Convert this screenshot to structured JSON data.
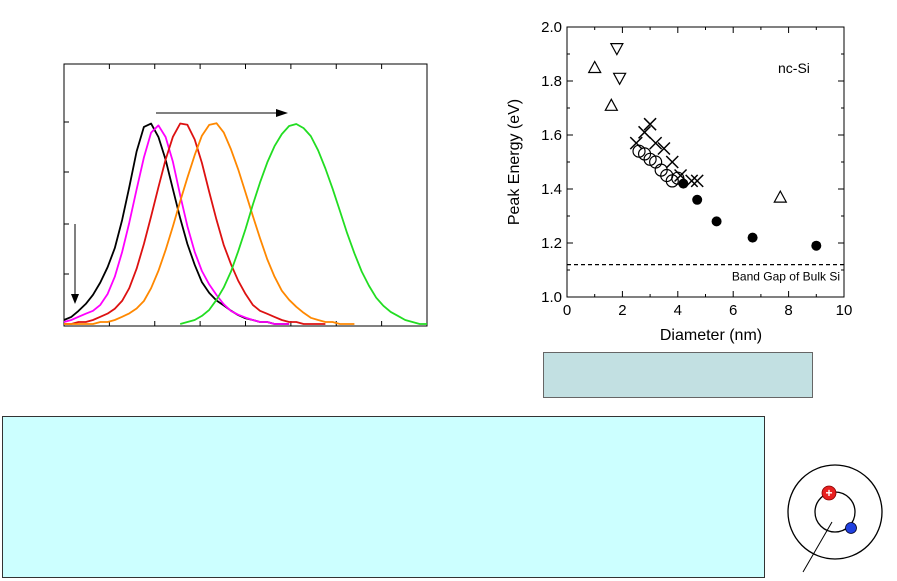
{
  "pl_chart": {
    "type": "line",
    "title": "",
    "xlabel": "",
    "ylabel": "",
    "xlim": [
      0,
      100
    ],
    "ylim": [
      0,
      1
    ],
    "x": [
      0,
      2,
      4,
      6,
      8,
      10,
      12,
      14,
      16,
      18,
      20,
      22,
      24,
      26,
      28,
      30,
      32,
      34,
      36,
      38,
      40,
      42,
      44,
      46,
      48,
      50,
      52,
      54,
      56,
      58,
      60,
      62,
      64,
      66,
      68,
      70,
      72,
      74,
      76,
      78,
      80,
      82,
      84,
      86,
      88,
      90,
      92,
      94,
      96,
      98,
      100
    ],
    "series": [
      {
        "color": "#000000",
        "values": [
          0.02,
          0.04,
          0.07,
          0.1,
          0.14,
          0.2,
          0.28,
          0.38,
          0.52,
          0.68,
          0.85,
          0.97,
          0.99,
          0.93,
          0.82,
          0.67,
          0.52,
          0.39,
          0.29,
          0.21,
          0.16,
          0.12,
          0.09,
          0.06,
          0.04,
          0.03,
          0.02,
          0.01,
          0.01,
          0.0,
          0.0,
          0.0,
          null,
          null,
          null,
          null,
          null,
          null,
          null,
          null,
          null,
          null,
          null,
          null,
          null,
          null,
          null,
          null,
          null,
          null,
          null
        ]
      },
      {
        "color": "#ff00ff",
        "values": [
          0.01,
          0.02,
          0.03,
          0.05,
          0.07,
          0.1,
          0.15,
          0.23,
          0.35,
          0.5,
          0.67,
          0.83,
          0.95,
          0.98,
          0.92,
          0.8,
          0.64,
          0.49,
          0.36,
          0.26,
          0.19,
          0.14,
          0.1,
          0.07,
          0.05,
          0.03,
          0.02,
          0.01,
          0.01,
          0.0,
          0.0,
          0.0,
          null,
          null,
          null,
          null,
          null,
          null,
          null,
          null,
          null,
          null,
          null,
          null,
          null,
          null,
          null,
          null,
          null,
          null,
          null
        ]
      },
      {
        "color": "#dd1111",
        "values": [
          0.0,
          0.0,
          0.01,
          0.01,
          0.02,
          0.03,
          0.05,
          0.08,
          0.12,
          0.18,
          0.27,
          0.39,
          0.53,
          0.68,
          0.82,
          0.93,
          0.99,
          0.98,
          0.91,
          0.8,
          0.66,
          0.52,
          0.39,
          0.29,
          0.21,
          0.15,
          0.1,
          0.07,
          0.05,
          0.03,
          0.02,
          0.01,
          0.01,
          0.0,
          0.0,
          0.0,
          0.0,
          null,
          null,
          null,
          null,
          null,
          null,
          null,
          null,
          null,
          null,
          null,
          null,
          null,
          null
        ]
      },
      {
        "color": "#ff8800",
        "values": [
          0.0,
          0.0,
          0.0,
          0.0,
          0.0,
          0.01,
          0.01,
          0.02,
          0.03,
          0.05,
          0.08,
          0.12,
          0.18,
          0.26,
          0.36,
          0.48,
          0.61,
          0.73,
          0.84,
          0.93,
          0.98,
          0.99,
          0.95,
          0.87,
          0.77,
          0.65,
          0.53,
          0.42,
          0.32,
          0.24,
          0.17,
          0.12,
          0.08,
          0.05,
          0.03,
          0.02,
          0.01,
          0.01,
          0.0,
          0.0,
          0.0,
          null,
          null,
          null,
          null,
          null,
          null,
          null,
          null,
          null,
          null
        ]
      },
      {
        "color": "#22dd22",
        "values": [
          null,
          null,
          null,
          null,
          null,
          null,
          null,
          null,
          null,
          null,
          null,
          null,
          null,
          null,
          null,
          null,
          0.0,
          0.01,
          0.02,
          0.04,
          0.07,
          0.12,
          0.18,
          0.26,
          0.36,
          0.47,
          0.59,
          0.7,
          0.8,
          0.88,
          0.94,
          0.98,
          0.99,
          0.97,
          0.93,
          0.86,
          0.77,
          0.67,
          0.56,
          0.45,
          0.35,
          0.26,
          0.19,
          0.13,
          0.09,
          0.06,
          0.04,
          0.02,
          0.01,
          0.0,
          0.0
        ]
      }
    ]
  },
  "pe_chart": {
    "type": "scatter",
    "xlabel": "Diameter (nm)",
    "ylabel": "Peak Energy (eV)",
    "xlim": [
      0,
      10
    ],
    "ylim": [
      1.0,
      2.0
    ],
    "xticks": [
      "0",
      "2",
      "4",
      "6",
      "8",
      "10"
    ],
    "yticks": [
      "1.0",
      "1.2",
      "1.4",
      "1.6",
      "1.8",
      "2.0"
    ],
    "legend_text": "nc-Si",
    "reference_line": {
      "y": 1.12,
      "label": "Band Gap of Bulk Si"
    },
    "series": [
      {
        "marker": "triangle-up",
        "points": [
          [
            1.0,
            1.85
          ],
          [
            1.6,
            1.71
          ],
          [
            7.7,
            1.37
          ]
        ]
      },
      {
        "marker": "triangle-down",
        "points": [
          [
            1.8,
            1.92
          ],
          [
            1.9,
            1.81
          ]
        ]
      },
      {
        "marker": "circle-open",
        "points": [
          [
            2.6,
            1.54
          ],
          [
            2.8,
            1.53
          ],
          [
            3.0,
            1.51
          ],
          [
            3.2,
            1.5
          ],
          [
            3.4,
            1.47
          ],
          [
            3.6,
            1.45
          ],
          [
            3.8,
            1.43
          ],
          [
            4.0,
            1.44
          ]
        ]
      },
      {
        "marker": "cross",
        "points": [
          [
            2.5,
            1.57
          ],
          [
            2.8,
            1.61
          ],
          [
            3.0,
            1.64
          ],
          [
            3.2,
            1.57
          ],
          [
            3.5,
            1.55
          ],
          [
            3.8,
            1.5
          ],
          [
            4.1,
            1.45
          ],
          [
            4.5,
            1.43
          ],
          [
            4.7,
            1.43
          ]
        ]
      },
      {
        "marker": "circle-filled",
        "points": [
          [
            4.2,
            1.42
          ],
          [
            4.7,
            1.36
          ],
          [
            5.4,
            1.28
          ],
          [
            6.7,
            1.22
          ],
          [
            9.0,
            1.19
          ]
        ]
      }
    ]
  }
}
